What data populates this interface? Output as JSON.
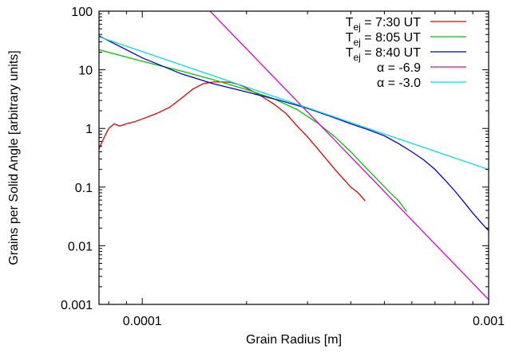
{
  "chart_data": {
    "type": "line",
    "xlabel": "Grain Radius [m]",
    "ylabel": "Grains per Solid Angle [arbitrary units]",
    "x_scale": "log",
    "y_scale": "log",
    "xlim": [
      7.5e-05,
      0.001
    ],
    "ylim": [
      0.001,
      100
    ],
    "x_tick_labels": [
      {
        "value": 0.0001,
        "label": "0.0001"
      },
      {
        "value": 0.001,
        "label": "0.001"
      }
    ],
    "y_tick_labels": [
      {
        "value": 100,
        "label": "100"
      },
      {
        "value": 10,
        "label": "10"
      },
      {
        "value": 1,
        "label": "1"
      },
      {
        "value": 0.1,
        "label": "0.1"
      },
      {
        "value": 0.01,
        "label": "0.01"
      },
      {
        "value": 0.001,
        "label": "0.001"
      }
    ],
    "grid": false,
    "legend_position": "top-right",
    "series": [
      {
        "name": "T_ej = 7:30 UT",
        "label_main": "T",
        "label_sub": "ej",
        "label_rest": " = 7:30 UT",
        "color": "#e00000",
        "x": [
          7.5e-05,
          7.8e-05,
          8e-05,
          8.3e-05,
          8.6e-05,
          9e-05,
          9.5e-05,
          0.0001,
          0.00011,
          0.00012,
          0.00013,
          0.00014,
          0.00015,
          0.00016,
          0.00017,
          0.00018,
          0.00019,
          0.0002,
          0.00022,
          0.00024,
          0.00026,
          0.00028,
          0.0003,
          0.00032,
          0.00034,
          0.00036,
          0.00038,
          0.0004,
          0.00042,
          0.00044
        ],
        "y": [
          0.45,
          0.75,
          1.0,
          1.2,
          1.1,
          1.2,
          1.3,
          1.45,
          1.8,
          2.3,
          3.3,
          4.7,
          5.8,
          6.2,
          6.2,
          6.1,
          5.6,
          4.9,
          3.6,
          2.6,
          1.8,
          1.1,
          0.72,
          0.46,
          0.3,
          0.2,
          0.14,
          0.1,
          0.08,
          0.058
        ]
      },
      {
        "name": "T_ej = 8:05 UT",
        "label_main": "T",
        "label_sub": "ej",
        "label_rest": " = 8:05 UT",
        "color": "#00c800",
        "x": [
          7.5e-05,
          0.0001,
          0.00013,
          0.00016,
          0.0002,
          0.00024,
          0.00028,
          0.00032,
          0.00036,
          0.0004,
          0.00044,
          0.00048,
          0.00052,
          0.00055,
          0.00058
        ],
        "y": [
          22,
          14,
          9.5,
          6.8,
          4.6,
          3.2,
          2.1,
          1.25,
          0.72,
          0.4,
          0.22,
          0.13,
          0.08,
          0.058,
          0.038
        ]
      },
      {
        "name": "T_ej = 8:40 UT",
        "label_main": "T",
        "label_sub": "ej",
        "label_rest": " = 8:40 UT",
        "color": "#0000c8",
        "x": [
          7.5e-05,
          0.0001,
          0.00013,
          0.00016,
          0.0002,
          0.00025,
          0.0003,
          0.00035,
          0.0004,
          0.00045,
          0.0005,
          0.00055,
          0.0006,
          0.00065,
          0.0007,
          0.00075,
          0.0008,
          0.00085,
          0.0009,
          0.00095,
          0.001
        ],
        "y": [
          38,
          16,
          8.5,
          5.8,
          4.2,
          3.0,
          2.2,
          1.6,
          1.2,
          0.95,
          0.75,
          0.55,
          0.4,
          0.29,
          0.2,
          0.13,
          0.085,
          0.055,
          0.036,
          0.025,
          0.018
        ]
      },
      {
        "name": "α = -6.9",
        "label_main": "α = -6.9",
        "label_sub": "",
        "label_rest": "",
        "color": "#e000e0",
        "x": [
          0.000157,
          0.001
        ],
        "y": [
          100,
          0.00121
        ]
      },
      {
        "name": "α = -3.0",
        "label_main": "α = -3.0",
        "label_sub": "",
        "label_rest": "",
        "color": "#00e0e0",
        "x": [
          7.5e-05,
          0.001
        ],
        "y": [
          36.5,
          0.2
        ]
      }
    ]
  }
}
